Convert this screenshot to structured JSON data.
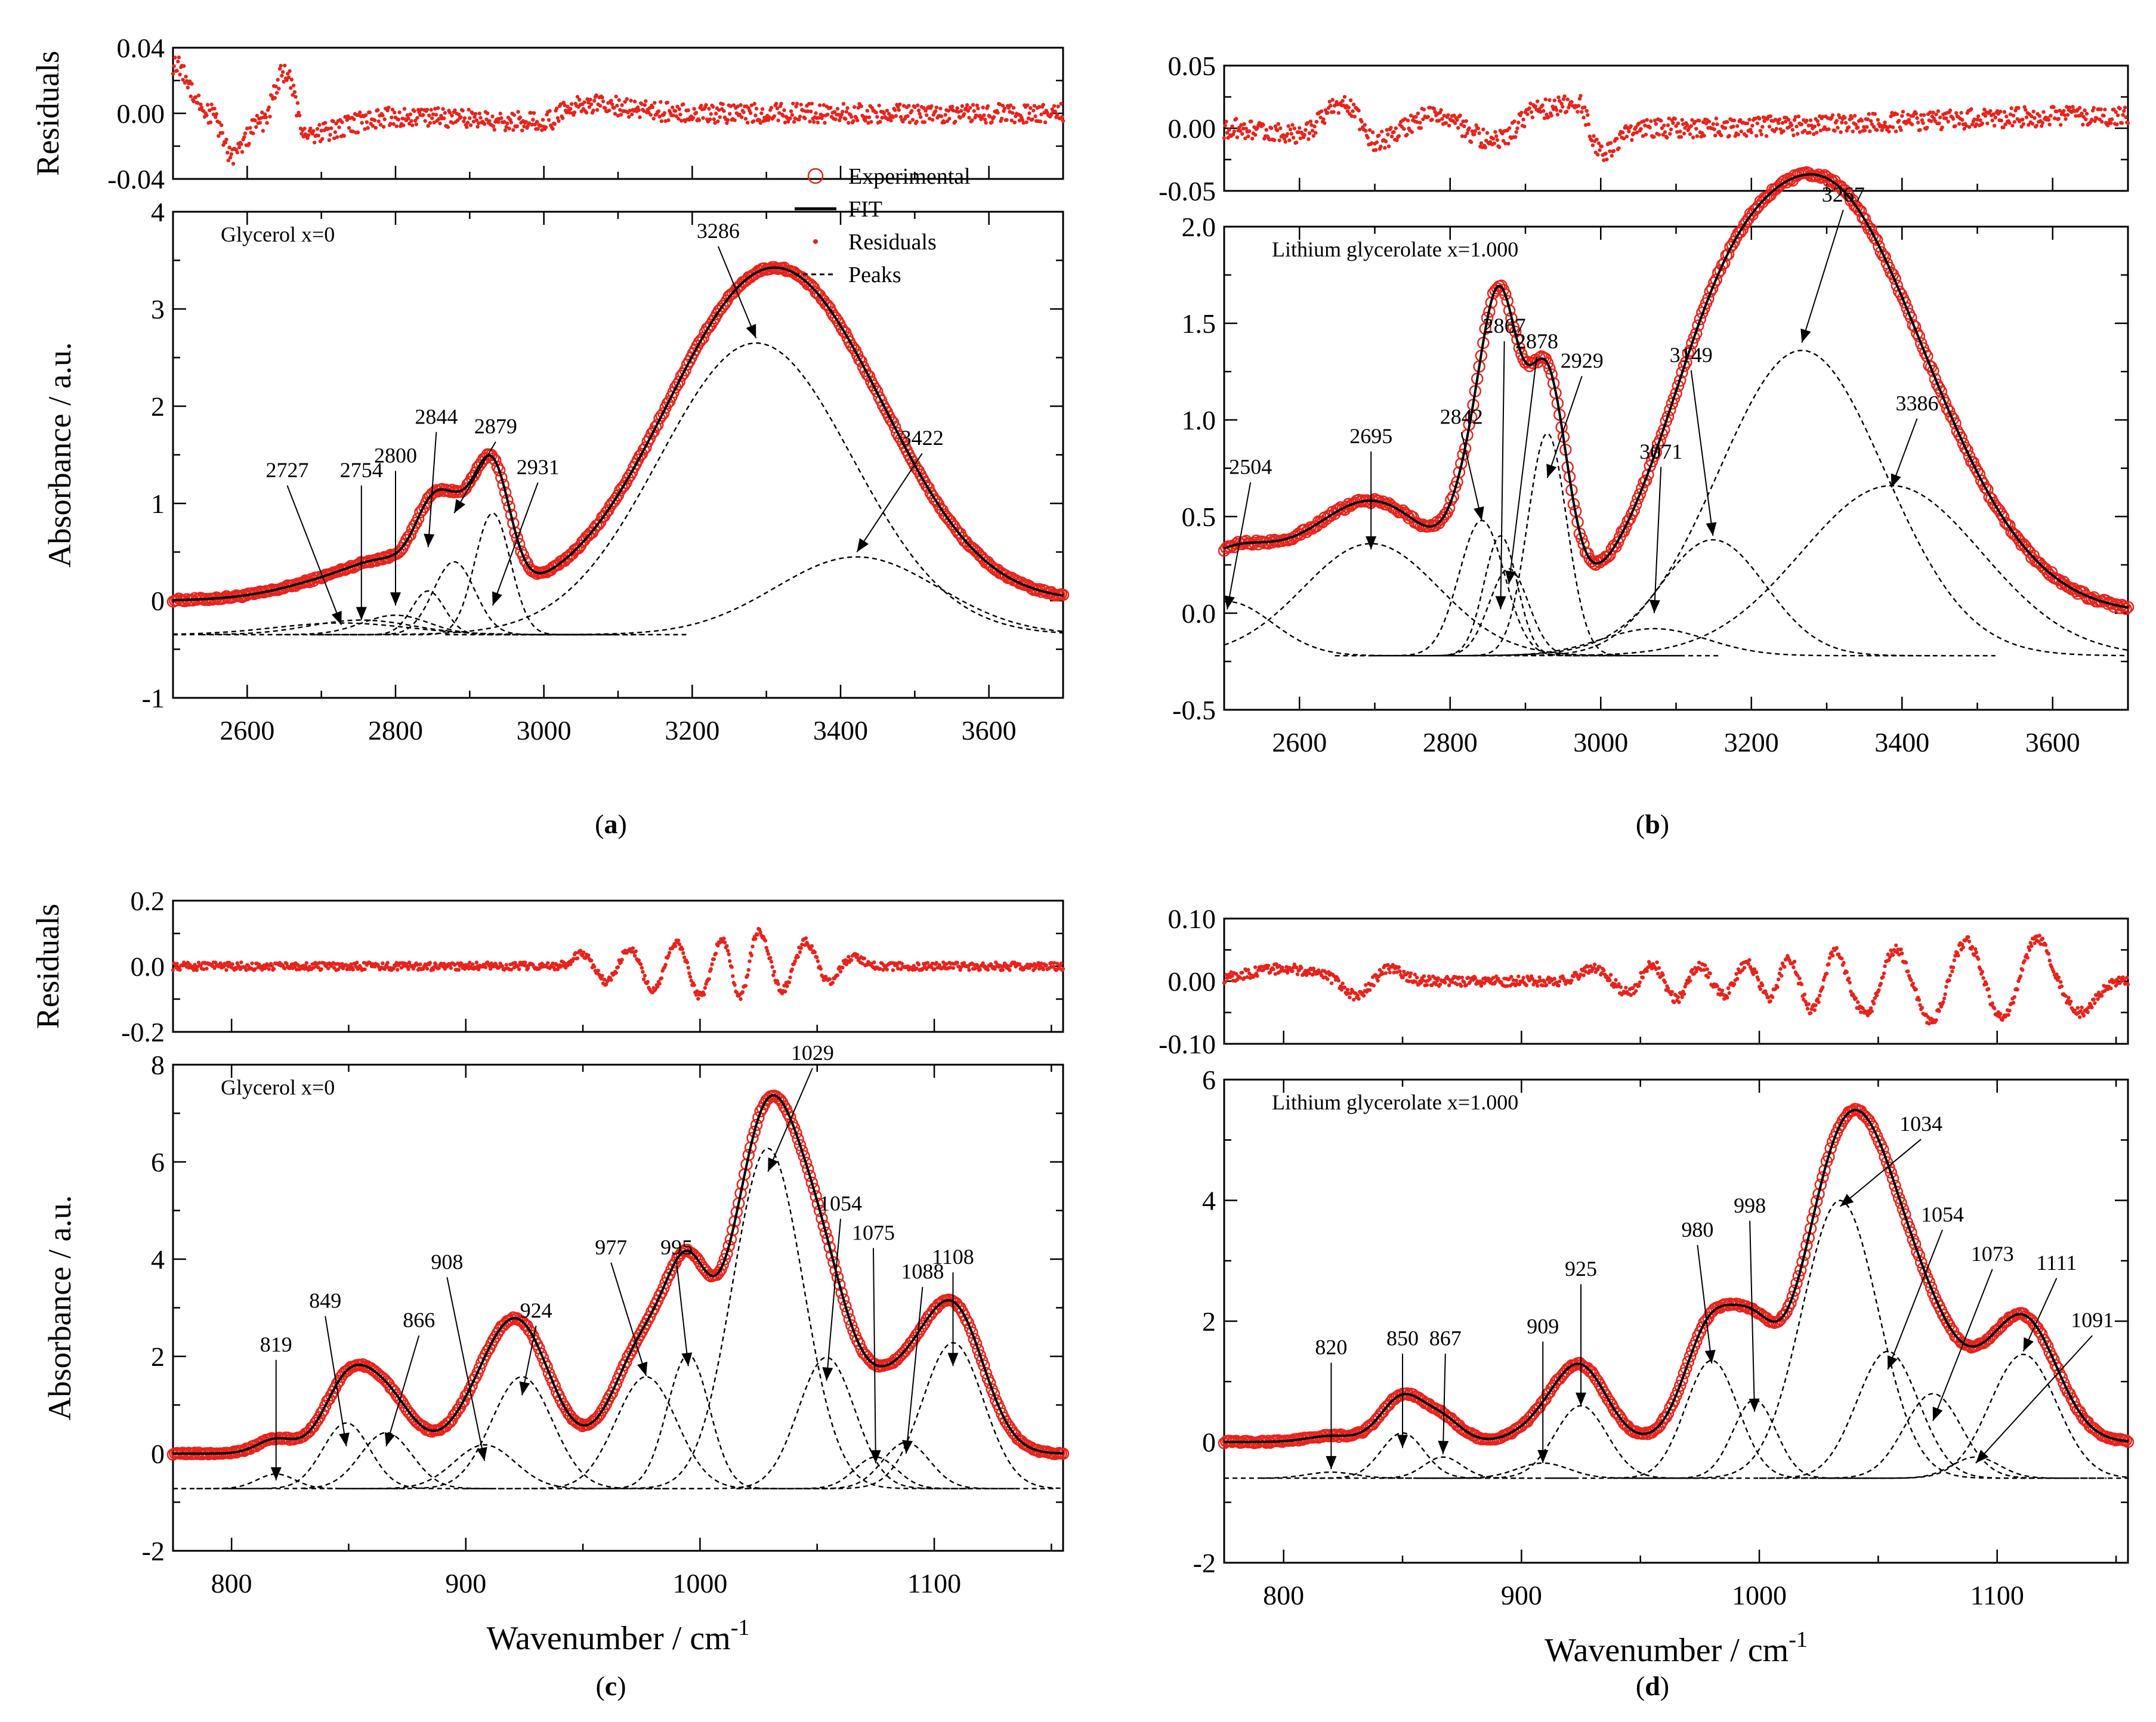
{
  "colors": {
    "experimental": "#e8231c",
    "fit": "#000000",
    "residuals": "#e8231c",
    "peaks": "#000000",
    "axis": "#000000"
  },
  "legend": {
    "experimental": "Experimental",
    "fit": "FIT",
    "residuals": "Residuals",
    "peaks": "Peaks"
  },
  "chart_data": [
    {
      "type": "line",
      "panel": "a",
      "caption_letter": "a",
      "annotation": "Glycerol x=0",
      "xlabel": "",
      "ylabel": "Absorbance / a.u.",
      "residual_ylabel": "Residuals",
      "xlim": [
        2500,
        3700
      ],
      "ylim": [
        -1,
        4
      ],
      "residual_ylim": [
        -0.04,
        0.04
      ],
      "x_ticks": [
        2600,
        2800,
        3000,
        3200,
        3400,
        3600
      ],
      "y_ticks": [
        -1,
        0,
        1,
        2,
        3,
        4
      ],
      "residual_ticks": [
        "0.04",
        "0.00",
        "-0.04"
      ],
      "residual_tick_values": [
        0.04,
        0.0,
        -0.04
      ],
      "legend_shown": true,
      "legend_position": "top-right",
      "baseline": -0.35,
      "spectrum_noise": 0.015,
      "residual_amplitude": 0.006,
      "residual_shape": [
        [
          2500,
          0.03
        ],
        [
          2550,
          0.0
        ],
        [
          2580,
          -0.025
        ],
        [
          2620,
          -0.005
        ],
        [
          2650,
          0.025
        ],
        [
          2680,
          -0.012
        ],
        [
          2800,
          -0.002
        ],
        [
          3000,
          -0.005
        ],
        [
          3050,
          0.006
        ],
        [
          3200,
          0.0
        ],
        [
          3700,
          0.0
        ]
      ],
      "peaks": [
        {
          "center": 2727,
          "height": 0.12,
          "width": 90,
          "label": "2727",
          "label_x": 2654,
          "label_y": 1.27
        },
        {
          "center": 2754,
          "height": 0.15,
          "width": 70,
          "label": "2754",
          "label_x": 2754,
          "label_y": 1.27
        },
        {
          "center": 2800,
          "height": 0.2,
          "width": 45,
          "label": "2800",
          "label_x": 2800,
          "label_y": 1.42
        },
        {
          "center": 2844,
          "height": 0.45,
          "width": 22,
          "label": "2844",
          "label_x": 2855,
          "label_y": 1.82
        },
        {
          "center": 2879,
          "height": 0.75,
          "width": 28,
          "label": "2879",
          "label_x": 2935,
          "label_y": 1.72
        },
        {
          "center": 2931,
          "height": 1.25,
          "width": 24,
          "label": "2931",
          "label_x": 2992,
          "label_y": 1.3
        },
        {
          "center": 3286,
          "height": 3.0,
          "width": 130,
          "label": "3286",
          "label_x": 3235,
          "label_y": 3.73
        },
        {
          "center": 3422,
          "height": 0.8,
          "width": 110,
          "label": "3422",
          "label_x": 3510,
          "label_y": 1.6
        }
      ],
      "peak_arrow_targets": [
        [
          2727,
          -0.25
        ],
        [
          2754,
          -0.2
        ],
        [
          2800,
          -0.05
        ],
        [
          2844,
          0.55
        ],
        [
          2879,
          0.9
        ],
        [
          2931,
          -0.05
        ],
        [
          3286,
          2.7
        ],
        [
          3422,
          0.5
        ]
      ]
    },
    {
      "type": "line",
      "panel": "b",
      "caption_letter": "b",
      "annotation": "Lithium glycerolate x=1.000",
      "xlabel": "",
      "ylabel": "",
      "residual_ylabel": "",
      "xlim": [
        2500,
        3700
      ],
      "ylim": [
        -0.5,
        2.0
      ],
      "residual_ylim": [
        -0.05,
        0.05
      ],
      "x_ticks": [
        2600,
        2800,
        3000,
        3200,
        3400,
        3600
      ],
      "y_ticks": [
        "-0.5",
        "0.0",
        "0.5",
        "1.0",
        "1.5",
        "2.0"
      ],
      "y_tick_values": [
        -0.5,
        0.0,
        0.5,
        1.0,
        1.5,
        2.0
      ],
      "residual_ticks": [
        "0.05",
        "0.00",
        "-0.05"
      ],
      "residual_tick_values": [
        0.05,
        0.0,
        -0.05
      ],
      "legend_shown": false,
      "baseline": -0.22,
      "spectrum_noise": 0.012,
      "residual_amplitude": 0.008,
      "residual_shape": [
        [
          2500,
          0.0
        ],
        [
          2600,
          -0.005
        ],
        [
          2660,
          0.02
        ],
        [
          2700,
          -0.01
        ],
        [
          2780,
          0.01
        ],
        [
          2860,
          -0.01
        ],
        [
          2920,
          0.015
        ],
        [
          2970,
          0.02
        ],
        [
          3000,
          -0.02
        ],
        [
          3050,
          0.0
        ],
        [
          3700,
          0.01
        ]
      ],
      "peaks": [
        {
          "center": 2504,
          "height": 0.28,
          "width": 60,
          "label": "2504",
          "label_x": 2535,
          "label_y": 0.72
        },
        {
          "center": 2695,
          "height": 0.58,
          "width": 90,
          "label": "2695",
          "label_x": 2695,
          "label_y": 0.88
        },
        {
          "center": 2842,
          "height": 0.7,
          "width": 30,
          "label": "2842",
          "label_x": 2815,
          "label_y": 0.98
        },
        {
          "center": 2867,
          "height": 0.62,
          "width": 22,
          "label": "2867",
          "label_x": 2872,
          "label_y": 1.45
        },
        {
          "center": 2878,
          "height": 0.45,
          "width": 26,
          "label": "2878",
          "label_x": 2915,
          "label_y": 1.37
        },
        {
          "center": 2929,
          "height": 1.15,
          "width": 26,
          "label": "2929",
          "label_x": 2975,
          "label_y": 1.27
        },
        {
          "center": 3071,
          "height": 0.14,
          "width": 70,
          "label": "3071",
          "label_x": 3080,
          "label_y": 0.8
        },
        {
          "center": 3149,
          "height": 0.6,
          "width": 70,
          "label": "3149",
          "label_x": 3120,
          "label_y": 1.3
        },
        {
          "center": 3267,
          "height": 1.58,
          "width": 110,
          "label": "3267",
          "label_x": 3322,
          "label_y": 2.13
        },
        {
          "center": 3386,
          "height": 0.88,
          "width": 120,
          "label": "3386",
          "label_x": 3420,
          "label_y": 1.05
        }
      ],
      "peak_arrow_targets": [
        [
          2504,
          0.02
        ],
        [
          2695,
          0.33
        ],
        [
          2842,
          0.48
        ],
        [
          2867,
          0.02
        ],
        [
          2878,
          0.15
        ],
        [
          2929,
          0.7
        ],
        [
          3071,
          0.0
        ],
        [
          3149,
          0.4
        ],
        [
          3267,
          1.4
        ],
        [
          3386,
          0.65
        ]
      ]
    },
    {
      "type": "line",
      "panel": "c",
      "caption_letter": "c",
      "annotation": "Glycerol x=0",
      "xlabel": "Wavenumber / cm",
      "xlabel_sup": "-1",
      "ylabel": "Absorbance / a.u.",
      "residual_ylabel": "Residuals",
      "xlim": [
        775,
        1155
      ],
      "ylim": [
        -2,
        8
      ],
      "residual_ylim": [
        -0.2,
        0.2
      ],
      "x_ticks": [
        800,
        900,
        1000,
        1100
      ],
      "y_ticks": [
        -2,
        0,
        2,
        4,
        6,
        8
      ],
      "residual_ticks": [
        "0.2",
        "0.0",
        "-0.2"
      ],
      "residual_tick_values": [
        0.2,
        0.0,
        -0.2
      ],
      "legend_shown": false,
      "baseline": -0.72,
      "spectrum_noise": 0.02,
      "residual_amplitude": 0.012,
      "residual_wiggles": [
        [
          950,
          0.04,
          4
        ],
        [
          960,
          -0.05,
          4
        ],
        [
          970,
          0.06,
          4
        ],
        [
          980,
          -0.08,
          4
        ],
        [
          990,
          0.08,
          4
        ],
        [
          1000,
          -0.1,
          4
        ],
        [
          1010,
          0.1,
          4
        ],
        [
          1017,
          -0.13,
          3.5
        ],
        [
          1025,
          0.12,
          4
        ],
        [
          1035,
          -0.08,
          4
        ],
        [
          1045,
          0.08,
          4
        ],
        [
          1055,
          -0.05,
          4
        ],
        [
          1065,
          0.03,
          4
        ]
      ],
      "peaks": [
        {
          "center": 819,
          "height": 0.3,
          "width": 8,
          "label": "819",
          "label_x": 819,
          "label_y": 2.1
        },
        {
          "center": 849,
          "height": 1.35,
          "width": 10,
          "label": "849",
          "label_x": 840,
          "label_y": 3.0
        },
        {
          "center": 866,
          "height": 1.15,
          "width": 11,
          "label": "866",
          "label_x": 880,
          "label_y": 2.6
        },
        {
          "center": 908,
          "height": 0.9,
          "width": 13,
          "label": "908",
          "label_x": 892,
          "label_y": 3.8
        },
        {
          "center": 924,
          "height": 2.3,
          "width": 13,
          "label": "924",
          "label_x": 930,
          "label_y": 2.8
        },
        {
          "center": 977,
          "height": 2.3,
          "width": 13,
          "label": "977",
          "label_x": 962,
          "label_y": 4.1
        },
        {
          "center": 995,
          "height": 2.75,
          "width": 9,
          "label": "995",
          "label_x": 990,
          "label_y": 4.1
        },
        {
          "center": 1029,
          "height": 7.0,
          "width": 15,
          "label": "1029",
          "label_x": 1048,
          "label_y": 8.1
        },
        {
          "center": 1054,
          "height": 2.7,
          "width": 12,
          "label": "1054",
          "label_x": 1060,
          "label_y": 5.0
        },
        {
          "center": 1075,
          "height": 0.65,
          "width": 9,
          "label": "1075",
          "label_x": 1074,
          "label_y": 4.4
        },
        {
          "center": 1088,
          "height": 0.95,
          "width": 10,
          "label": "1088",
          "label_x": 1095,
          "label_y": 3.6
        },
        {
          "center": 1108,
          "height": 3.0,
          "width": 13,
          "label": "1108",
          "label_x": 1108,
          "label_y": 3.9
        }
      ],
      "peak_arrow_targets": [
        [
          819,
          -0.55
        ],
        [
          849,
          0.15
        ],
        [
          866,
          0.15
        ],
        [
          908,
          -0.15
        ],
        [
          924,
          1.2
        ],
        [
          977,
          1.6
        ],
        [
          995,
          1.8
        ],
        [
          1029,
          5.8
        ],
        [
          1054,
          1.5
        ],
        [
          1075,
          -0.2
        ],
        [
          1088,
          0.0
        ],
        [
          1108,
          1.8
        ]
      ]
    },
    {
      "type": "line",
      "panel": "d",
      "caption_letter": "d",
      "annotation": "Lithium glycerolate x=1.000",
      "xlabel": "Wavenumber / cm",
      "xlabel_sup": "-1",
      "ylabel": "",
      "residual_ylabel": "",
      "xlim": [
        775,
        1155
      ],
      "ylim": [
        -2,
        6
      ],
      "residual_ylim": [
        -0.1,
        0.1
      ],
      "x_ticks": [
        800,
        900,
        1000,
        1100
      ],
      "y_ticks": [
        -2,
        0,
        2,
        4,
        6
      ],
      "residual_ticks": [
        "0.10",
        "0.00",
        "-0.10"
      ],
      "residual_tick_values": [
        0.1,
        0.0,
        -0.1
      ],
      "legend_shown": false,
      "baseline": -0.6,
      "spectrum_noise": 0.02,
      "residual_amplitude": 0.008,
      "residual_wiggles": [
        [
          800,
          0.02,
          15
        ],
        [
          830,
          -0.025,
          5
        ],
        [
          845,
          0.02,
          5
        ],
        [
          930,
          0.022,
          5
        ],
        [
          945,
          -0.02,
          4
        ],
        [
          955,
          0.03,
          4
        ],
        [
          965,
          -0.03,
          4
        ],
        [
          975,
          0.025,
          4
        ],
        [
          985,
          -0.025,
          4
        ],
        [
          995,
          0.03,
          4
        ],
        [
          1005,
          -0.035,
          4
        ],
        [
          1012,
          0.045,
          4
        ],
        [
          1022,
          -0.05,
          4
        ],
        [
          1032,
          0.05,
          4
        ],
        [
          1045,
          -0.055,
          5
        ],
        [
          1057,
          0.055,
          5
        ],
        [
          1072,
          -0.065,
          5
        ],
        [
          1087,
          0.065,
          5
        ],
        [
          1102,
          -0.06,
          5
        ],
        [
          1117,
          0.07,
          5
        ],
        [
          1135,
          -0.05,
          6
        ]
      ],
      "peaks": [
        {
          "center": 820,
          "height": 0.1,
          "width": 10,
          "label": "820",
          "label_x": 820,
          "label_y": 1.45
        },
        {
          "center": 850,
          "height": 0.75,
          "width": 9,
          "label": "850",
          "label_x": 850,
          "label_y": 1.6
        },
        {
          "center": 867,
          "height": 0.35,
          "width": 8,
          "label": "867",
          "label_x": 868,
          "label_y": 1.6
        },
        {
          "center": 909,
          "height": 0.25,
          "width": 11,
          "label": "909",
          "label_x": 909,
          "label_y": 1.8
        },
        {
          "center": 925,
          "height": 1.2,
          "width": 11,
          "label": "925",
          "label_x": 925,
          "label_y": 2.75
        },
        {
          "center": 980,
          "height": 1.95,
          "width": 11,
          "label": "980",
          "label_x": 974,
          "label_y": 3.4
        },
        {
          "center": 998,
          "height": 1.3,
          "width": 9,
          "label": "998",
          "label_x": 996,
          "label_y": 3.8
        },
        {
          "center": 1034,
          "height": 4.6,
          "width": 16,
          "label": "1034",
          "label_x": 1068,
          "label_y": 5.15
        },
        {
          "center": 1054,
          "height": 2.1,
          "width": 13,
          "label": "1054",
          "label_x": 1077,
          "label_y": 3.65
        },
        {
          "center": 1073,
          "height": 1.4,
          "width": 12,
          "label": "1073",
          "label_x": 1098,
          "label_y": 3.0
        },
        {
          "center": 1091,
          "height": 0.35,
          "width": 10,
          "label": "1091",
          "label_x": 1140,
          "label_y": 1.9
        },
        {
          "center": 1111,
          "height": 2.05,
          "width": 14,
          "label": "1111",
          "label_x": 1125,
          "label_y": 2.85
        }
      ],
      "peak_arrow_targets": [
        [
          820,
          -0.45
        ],
        [
          850,
          -0.1
        ],
        [
          867,
          -0.2
        ],
        [
          909,
          -0.35
        ],
        [
          925,
          0.6
        ],
        [
          980,
          1.3
        ],
        [
          998,
          0.5
        ],
        [
          1034,
          3.9
        ],
        [
          1054,
          1.2
        ],
        [
          1073,
          0.35
        ],
        [
          1091,
          -0.35
        ],
        [
          1111,
          1.5
        ]
      ]
    }
  ]
}
